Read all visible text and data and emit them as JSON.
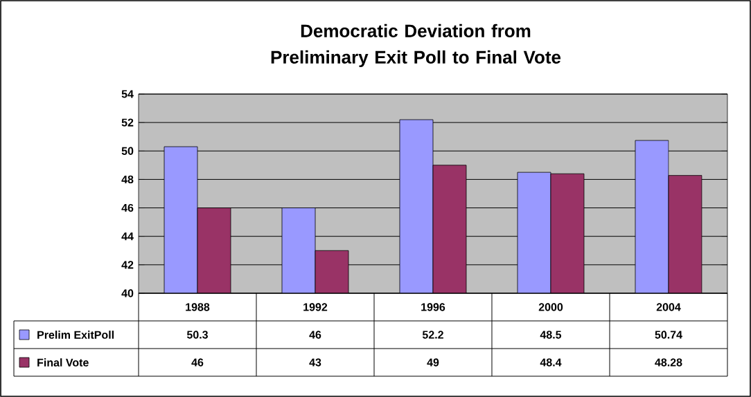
{
  "chart_data": {
    "type": "bar",
    "title": "Democratic Deviation from\nPreliminary Exit Poll to Final Vote",
    "categories": [
      "1988",
      "1992",
      "1996",
      "2000",
      "2004"
    ],
    "series": [
      {
        "name": "Prelim ExitPoll",
        "color": "#9999ff",
        "values": [
          50.3,
          46,
          52.2,
          48.5,
          50.74
        ]
      },
      {
        "name": "Final  Vote",
        "color": "#993366",
        "values": [
          46,
          43,
          49,
          48.4,
          48.28
        ]
      }
    ],
    "ylim": [
      40,
      54
    ],
    "yticks": [
      40,
      42,
      44,
      46,
      48,
      50,
      52,
      54
    ],
    "grid": "y",
    "legend": "bottom",
    "data_labels": true
  }
}
